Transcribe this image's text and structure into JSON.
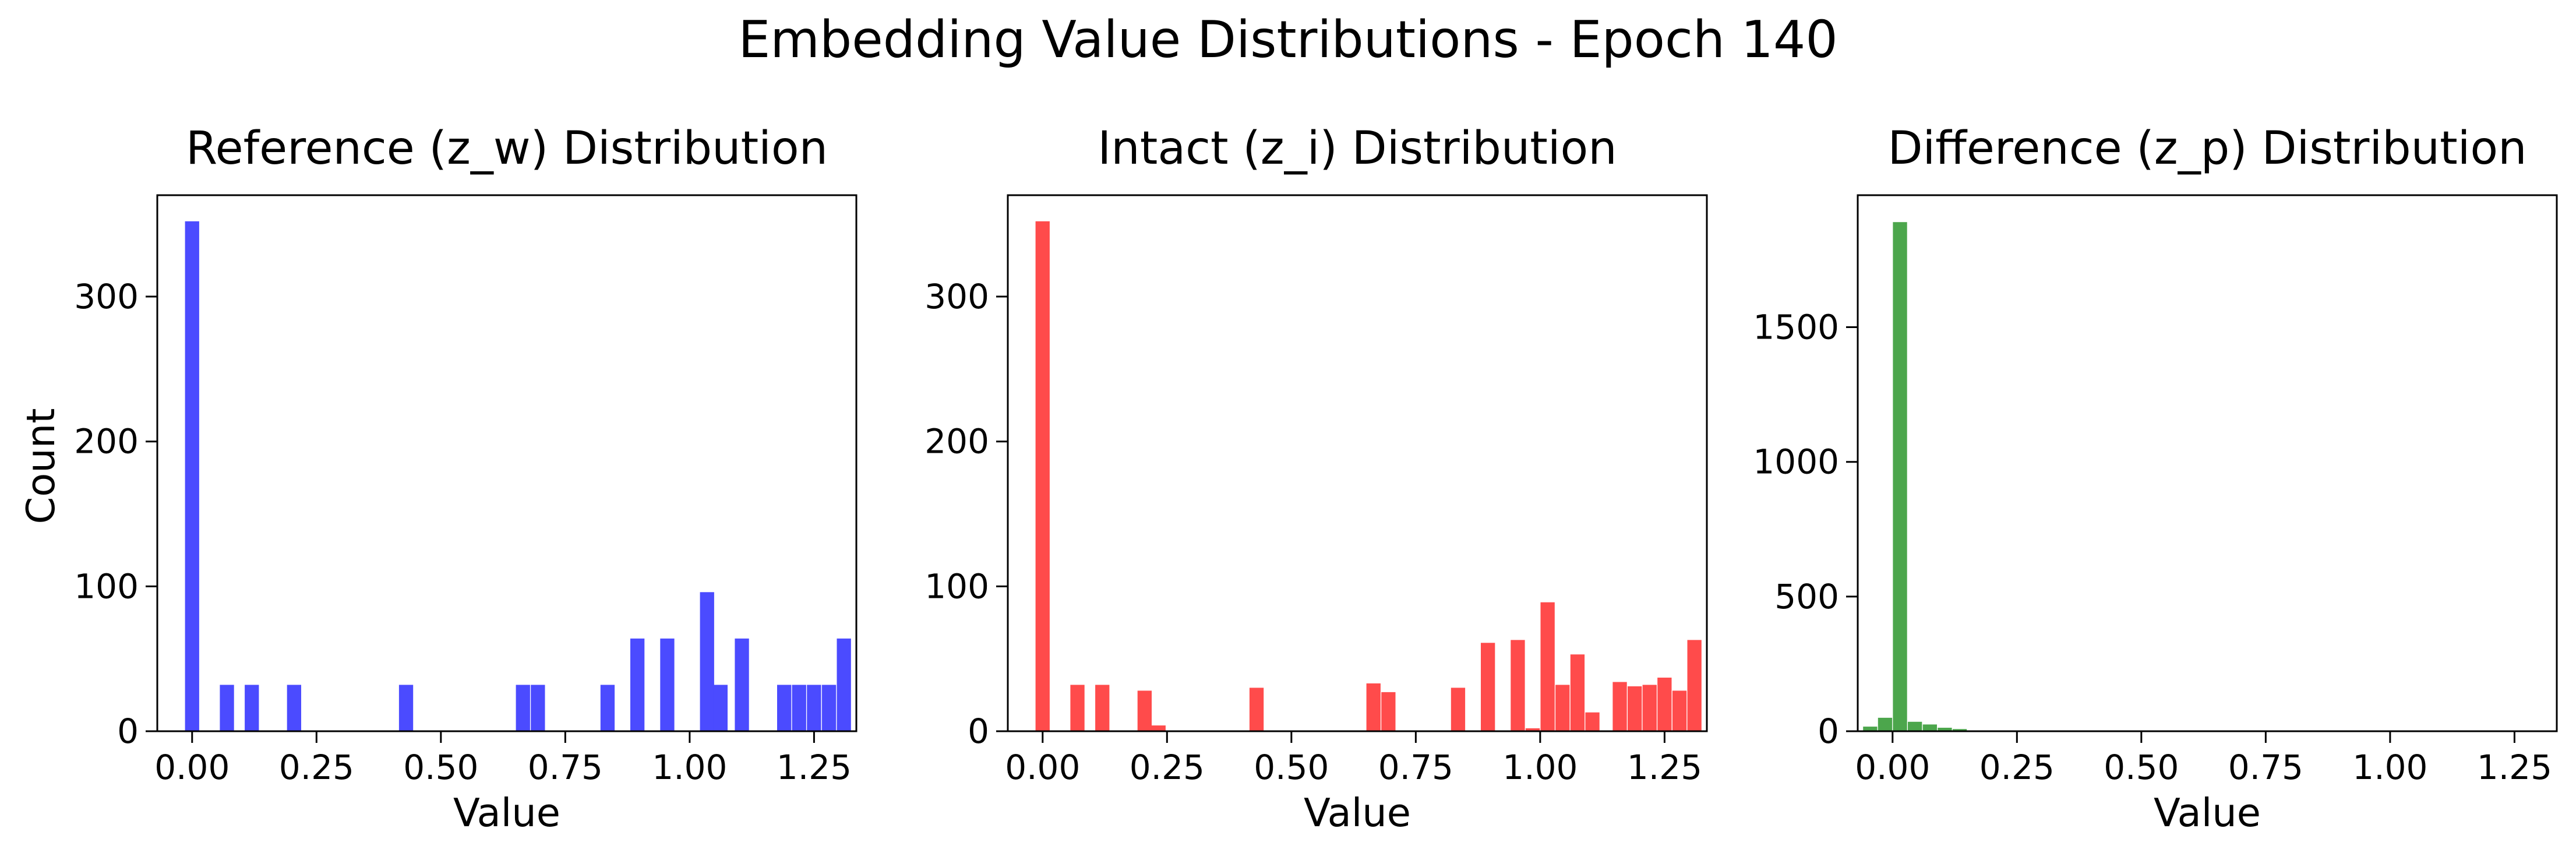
{
  "suptitle": "Embedding Value Distributions - Epoch 140",
  "ylabel_shared": "Count",
  "chart_data": [
    {
      "type": "bar",
      "title": "Reference (z_w) Distribution",
      "xlabel": "Value",
      "ylabel": "Count",
      "color": "#4b4bff",
      "xlim": [
        -0.07,
        1.335
      ],
      "ylim": [
        0,
        370
      ],
      "xticks": [
        "0.00",
        "0.25",
        "0.50",
        "0.75",
        "1.00",
        "1.25"
      ],
      "yticks": [
        "0",
        "100",
        "200",
        "300"
      ],
      "bin_width": 0.0285,
      "x": [
        0.0,
        0.07,
        0.12,
        0.205,
        0.43,
        0.665,
        0.695,
        0.835,
        0.895,
        0.955,
        1.035,
        1.062,
        1.105,
        1.19,
        1.22,
        1.25,
        1.28,
        1.31
      ],
      "values": [
        352,
        32,
        32,
        32,
        32,
        32,
        32,
        32,
        64,
        64,
        96,
        32,
        64,
        32,
        32,
        32,
        32,
        64
      ]
    },
    {
      "type": "bar",
      "title": "Intact (z_i) Distribution",
      "xlabel": "Value",
      "ylabel": "",
      "color": "#ff4b4b",
      "xlim": [
        -0.07,
        1.335
      ],
      "ylim": [
        0,
        370
      ],
      "xticks": [
        "0.00",
        "0.25",
        "0.50",
        "0.75",
        "1.00",
        "1.25"
      ],
      "yticks": [
        "0",
        "100",
        "200",
        "300"
      ],
      "bin_width": 0.0285,
      "x": [
        0.0,
        0.07,
        0.12,
        0.205,
        0.233,
        0.43,
        0.665,
        0.695,
        0.835,
        0.895,
        0.955,
        0.985,
        1.015,
        1.045,
        1.075,
        1.105,
        1.16,
        1.19,
        1.22,
        1.25,
        1.28,
        1.31
      ],
      "values": [
        352,
        32,
        32,
        28,
        4,
        30,
        33,
        27,
        30,
        61,
        63,
        2,
        89,
        32,
        53,
        13,
        34,
        31,
        32,
        37,
        28,
        63
      ]
    },
    {
      "type": "bar",
      "title": "Difference (z_p) Distribution",
      "xlabel": "Value",
      "ylabel": "",
      "color": "#4ca64c",
      "xlim": [
        -0.07,
        1.335
      ],
      "ylim": [
        0,
        1990
      ],
      "xticks": [
        "0.00",
        "0.25",
        "0.50",
        "0.75",
        "1.00",
        "1.25"
      ],
      "yticks": [
        "0",
        "500",
        "1000",
        "1500"
      ],
      "bin_width": 0.0285,
      "x": [
        -0.045,
        -0.015,
        0.015,
        0.045,
        0.075,
        0.105,
        0.135
      ],
      "values": [
        17,
        50,
        1890,
        35,
        25,
        13,
        8
      ]
    }
  ]
}
